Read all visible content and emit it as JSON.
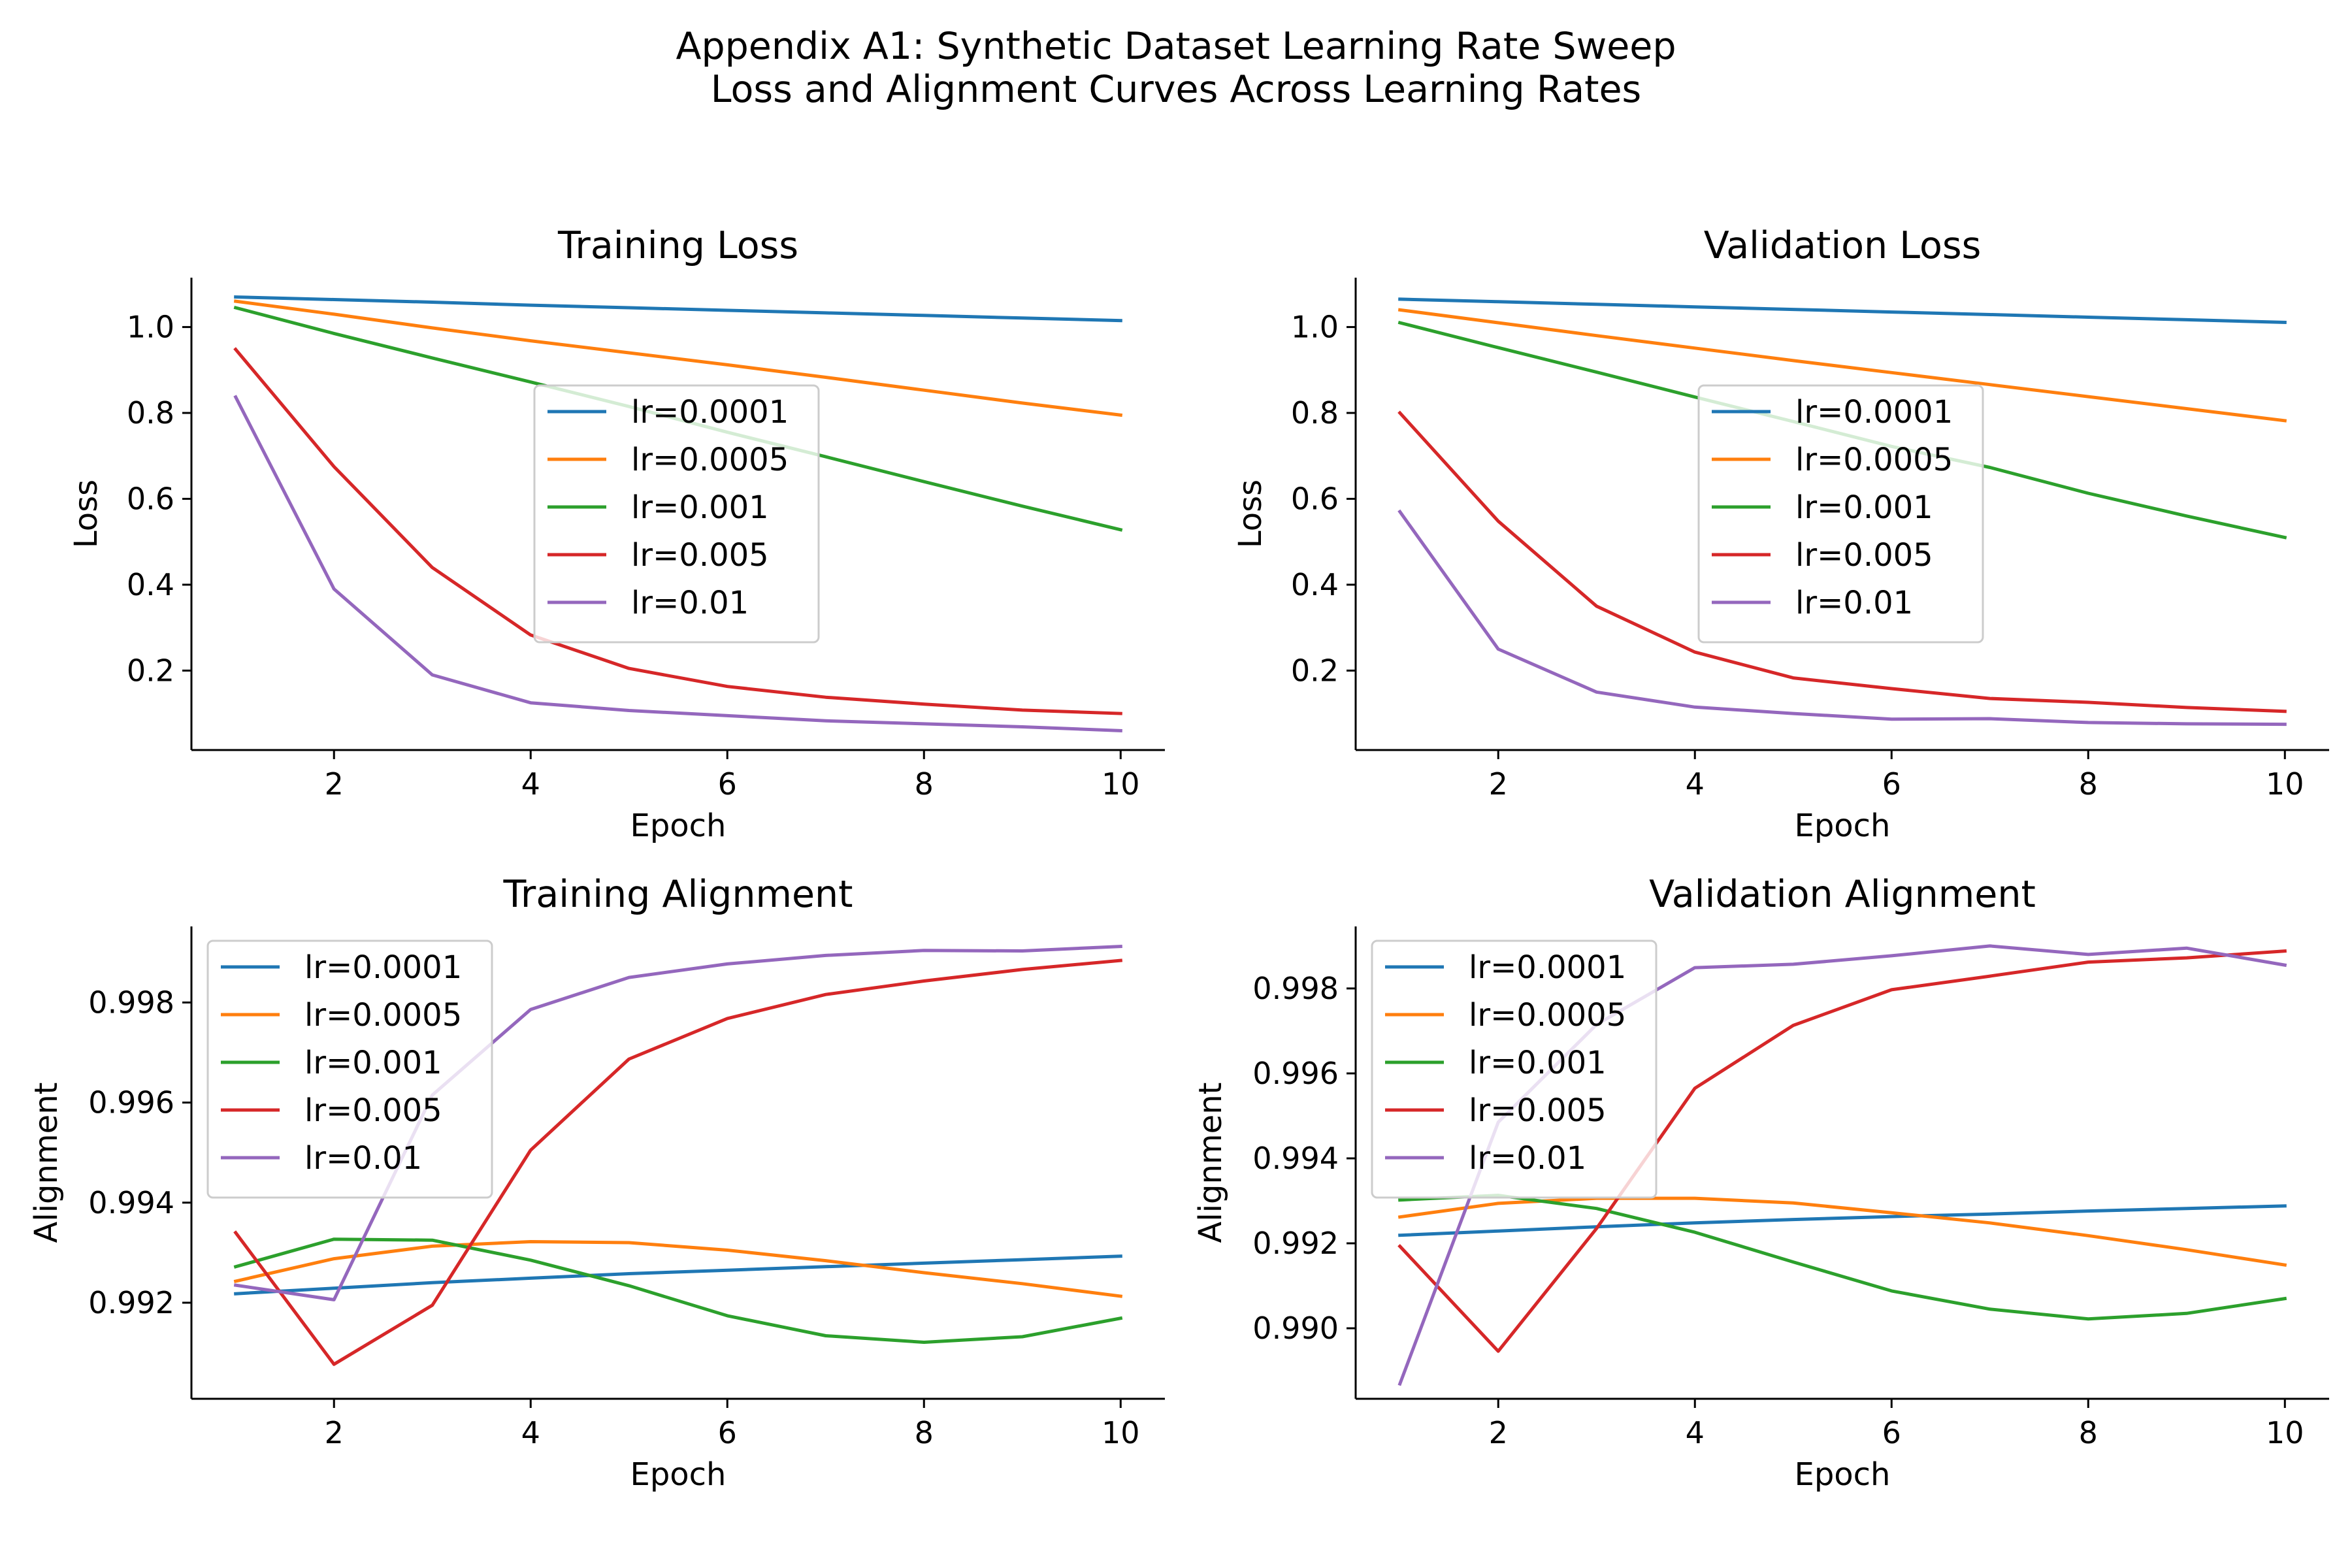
{
  "figure": {
    "title_line1": "Appendix A1: Synthetic Dataset Learning Rate Sweep",
    "title_line2": "Loss and Alignment Curves Across Learning Rates"
  },
  "colors": {
    "lr=0.0001": "#1f77b4",
    "lr=0.0005": "#ff7f0e",
    "lr=0.001": "#2ca02c",
    "lr=0.005": "#d62728",
    "lr=0.01": "#9467bd"
  },
  "chart_data": [
    {
      "type": "line",
      "title": "Training Loss",
      "xlabel": "Epoch",
      "ylabel": "Loss",
      "xlim": [
        0.55,
        10.45
      ],
      "ylim": [
        0.015,
        1.115
      ],
      "xticks": [
        2,
        4,
        6,
        8,
        10
      ],
      "yticks": [
        0.2,
        0.4,
        0.6,
        0.8,
        1.0
      ],
      "ytick_format": 1,
      "legend": "center",
      "grid": false,
      "x": [
        1,
        2,
        3,
        4,
        5,
        6,
        7,
        8,
        9,
        10
      ],
      "series": [
        {
          "name": "lr=0.0001",
          "values": [
            1.07,
            1.064,
            1.058,
            1.051,
            1.045,
            1.039,
            1.033,
            1.027,
            1.021,
            1.015
          ]
        },
        {
          "name": "lr=0.0005",
          "values": [
            1.06,
            1.03,
            0.998,
            0.968,
            0.94,
            0.912,
            0.883,
            0.853,
            0.823,
            0.795
          ]
        },
        {
          "name": "lr=0.001",
          "values": [
            1.045,
            0.985,
            0.928,
            0.872,
            0.815,
            0.755,
            0.698,
            0.64,
            0.583,
            0.528
          ]
        },
        {
          "name": "lr=0.005",
          "values": [
            0.948,
            0.675,
            0.44,
            0.283,
            0.205,
            0.163,
            0.138,
            0.122,
            0.108,
            0.1
          ]
        },
        {
          "name": "lr=0.01",
          "values": [
            0.837,
            0.39,
            0.19,
            0.125,
            0.107,
            0.095,
            0.083,
            0.076,
            0.069,
            0.06
          ]
        }
      ]
    },
    {
      "type": "line",
      "title": "Validation Loss",
      "xlabel": "Epoch",
      "ylabel": "Loss",
      "xlim": [
        0.55,
        10.45
      ],
      "ylim": [
        0.015,
        1.115
      ],
      "xticks": [
        2,
        4,
        6,
        8,
        10
      ],
      "yticks": [
        0.2,
        0.4,
        0.6,
        0.8,
        1.0
      ],
      "ytick_format": 1,
      "legend": "center",
      "grid": false,
      "x": [
        1,
        2,
        3,
        4,
        5,
        6,
        7,
        8,
        9,
        10
      ],
      "series": [
        {
          "name": "lr=0.0001",
          "values": [
            1.065,
            1.059,
            1.053,
            1.047,
            1.041,
            1.035,
            1.029,
            1.023,
            1.017,
            1.011
          ]
        },
        {
          "name": "lr=0.0005",
          "values": [
            1.04,
            1.01,
            0.98,
            0.951,
            0.922,
            0.894,
            0.866,
            0.838,
            0.81,
            0.782
          ]
        },
        {
          "name": "lr=0.001",
          "values": [
            1.01,
            0.952,
            0.895,
            0.837,
            0.78,
            0.722,
            0.673,
            0.613,
            0.56,
            0.51
          ]
        },
        {
          "name": "lr=0.005",
          "values": [
            0.8,
            0.548,
            0.35,
            0.243,
            0.183,
            0.158,
            0.135,
            0.126,
            0.114,
            0.105
          ]
        },
        {
          "name": "lr=0.01",
          "values": [
            0.57,
            0.25,
            0.15,
            0.115,
            0.1,
            0.087,
            0.088,
            0.079,
            0.076,
            0.075
          ]
        }
      ]
    },
    {
      "type": "line",
      "title": "Training Alignment",
      "xlabel": "Epoch",
      "ylabel": "Alignment",
      "xlim": [
        0.55,
        10.45
      ],
      "ylim": [
        0.99008,
        0.99952
      ],
      "xticks": [
        2,
        4,
        6,
        8,
        10
      ],
      "yticks": [
        0.992,
        0.994,
        0.996,
        0.998
      ],
      "ytick_format": 3,
      "legend": "upper left",
      "grid": false,
      "x": [
        1,
        2,
        3,
        4,
        5,
        6,
        7,
        8,
        9,
        10
      ],
      "series": [
        {
          "name": "lr=0.0001",
          "values": [
            0.99218,
            0.99229,
            0.9924,
            0.99249,
            0.99258,
            0.99265,
            0.99272,
            0.99279,
            0.99286,
            0.99293
          ]
        },
        {
          "name": "lr=0.0005",
          "values": [
            0.99243,
            0.99288,
            0.99313,
            0.99322,
            0.9932,
            0.99305,
            0.99284,
            0.9926,
            0.99238,
            0.99213
          ]
        },
        {
          "name": "lr=0.001",
          "values": [
            0.99272,
            0.99327,
            0.99325,
            0.99285,
            0.99234,
            0.99174,
            0.99134,
            0.99121,
            0.99132,
            0.99169
          ]
        },
        {
          "name": "lr=0.005",
          "values": [
            0.9934,
            0.99077,
            0.99195,
            0.99505,
            0.99687,
            0.99768,
            0.99816,
            0.99843,
            0.99866,
            0.99884
          ]
        },
        {
          "name": "lr=0.01",
          "values": [
            0.99235,
            0.99206,
            0.99615,
            0.99786,
            0.9985,
            0.99877,
            0.99894,
            0.99904,
            0.99903,
            0.99912
          ]
        }
      ]
    },
    {
      "type": "line",
      "title": "Validation Alignment",
      "xlabel": "Epoch",
      "ylabel": "Alignment",
      "xlim": [
        0.55,
        10.45
      ],
      "ylim": [
        0.98834,
        0.99946
      ],
      "xticks": [
        2,
        4,
        6,
        8,
        10
      ],
      "yticks": [
        0.99,
        0.992,
        0.994,
        0.996,
        0.998
      ],
      "ytick_format": 3,
      "legend": "upper left",
      "grid": false,
      "x": [
        1,
        2,
        3,
        4,
        5,
        6,
        7,
        8,
        9,
        10
      ],
      "series": [
        {
          "name": "lr=0.0001",
          "values": [
            0.99219,
            0.99229,
            0.99239,
            0.99248,
            0.99256,
            0.99263,
            0.99269,
            0.99276,
            0.99282,
            0.99288
          ]
        },
        {
          "name": "lr=0.0005",
          "values": [
            0.99262,
            0.99294,
            0.99306,
            0.99306,
            0.99295,
            0.99272,
            0.99248,
            0.99218,
            0.99185,
            0.99149
          ]
        },
        {
          "name": "lr=0.001",
          "values": [
            0.99302,
            0.99313,
            0.99282,
            0.99226,
            0.99156,
            0.99088,
            0.99045,
            0.99022,
            0.99035,
            0.9907
          ]
        },
        {
          "name": "lr=0.005",
          "values": [
            0.99193,
            0.98946,
            0.99235,
            0.99565,
            0.99713,
            0.99797,
            0.99829,
            0.99862,
            0.99872,
            0.99888
          ]
        },
        {
          "name": "lr=0.01",
          "values": [
            0.98869,
            0.99485,
            0.99715,
            0.99849,
            0.99857,
            0.99877,
            0.999,
            0.9988,
            0.99895,
            0.99855
          ]
        }
      ]
    }
  ]
}
